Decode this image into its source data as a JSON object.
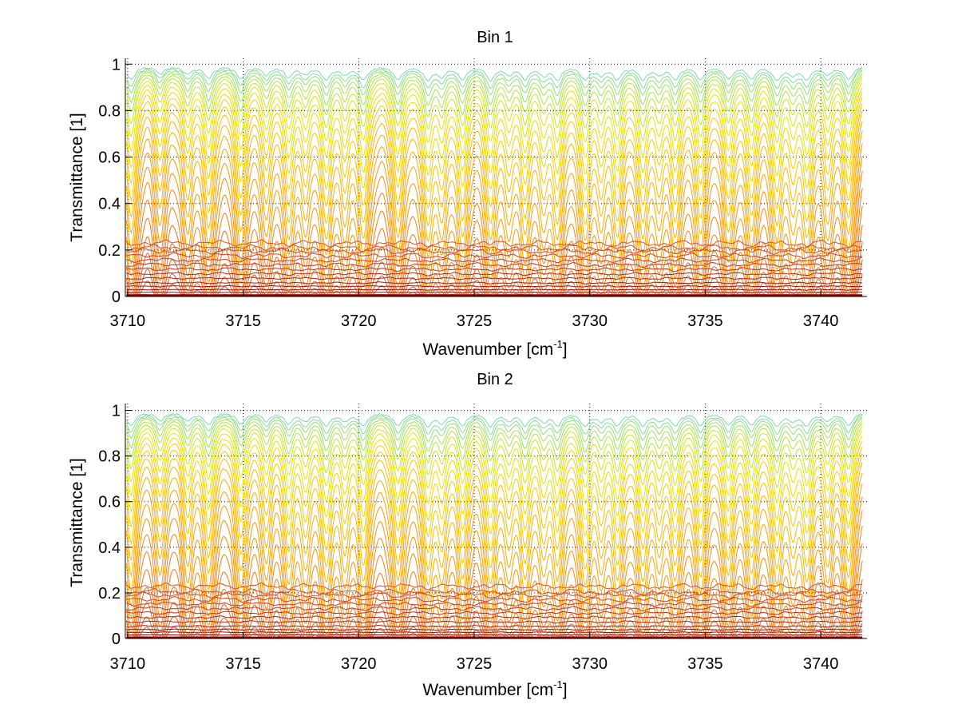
{
  "chart_data": [
    {
      "type": "line",
      "title": "Bin 1",
      "xlabel": "Wavenumber [cm",
      "xlabel_sup": "-1",
      "xlabel_end": "]",
      "ylabel": "Transmittance [1]",
      "xlim": [
        3709.9,
        3742.0
      ],
      "ylim": [
        0,
        1.025
      ],
      "xticks": [
        3710,
        3715,
        3720,
        3725,
        3730,
        3735,
        3740
      ],
      "xtick_labels": [
        "3710",
        "3715",
        "3720",
        "3725",
        "3730",
        "3735",
        "3740"
      ],
      "yticks": [
        0,
        0.2,
        0.4,
        0.6,
        0.8,
        1
      ],
      "ytick_labels": [
        "0",
        "0.2",
        "0.4",
        "0.6",
        "0.8",
        "1"
      ],
      "grid": "dotted",
      "x_range_data": [
        3709.95,
        3741.8
      ],
      "line_centers": [
        3710.15,
        3711.4,
        3712.6,
        3713.5,
        3714.9,
        3716.0,
        3716.97,
        3717.7,
        3718.6,
        3719.4,
        3720.2,
        3721.7,
        3723.0,
        3723.6,
        3724.5,
        3725.7,
        3726.5,
        3727.2,
        3728.0,
        3728.6,
        3729.8,
        3730.5,
        3731.2,
        3732.3,
        3733.0,
        3733.7,
        3734.8,
        3736.0,
        3737.0,
        3738.1,
        3738.8,
        3739.4,
        3740.3,
        3741.2
      ],
      "line_strengths": [
        1.0,
        0.55,
        0.6,
        0.9,
        0.95,
        0.6,
        0.8,
        0.55,
        1.0,
        0.6,
        1.0,
        1.0,
        1.0,
        0.7,
        0.95,
        1.0,
        0.55,
        0.9,
        0.6,
        0.95,
        1.0,
        0.6,
        0.95,
        0.95,
        0.6,
        0.95,
        0.95,
        0.9,
        0.9,
        1.0,
        0.6,
        0.95,
        0.6,
        1.0
      ],
      "optical_depths": [
        0.01,
        0.015,
        0.02,
        0.027,
        0.035,
        0.045,
        0.057,
        0.072,
        0.09,
        0.11,
        0.135,
        0.165,
        0.2,
        0.245,
        0.3,
        0.37,
        0.45,
        0.55,
        0.68,
        0.84,
        1.05,
        1.3,
        1.65,
        2.1
      ],
      "flat_levels": [
        0.235,
        0.215,
        0.2,
        0.18,
        0.16,
        0.14,
        0.12,
        0.1,
        0.08,
        0.06,
        0.045,
        0.03,
        0.018,
        0.008,
        0.003
      ],
      "colormap": [
        "#6fd6d0",
        "#9be35a",
        "#e6e600",
        "#ffc000",
        "#ff9a00",
        "#f57a10",
        "#e85a18",
        "#d84020",
        "#c02818",
        "#a01010",
        "#8b0000"
      ]
    },
    {
      "type": "line",
      "title": "Bin 2",
      "xlabel": "Wavenumber [cm",
      "xlabel_sup": "-1",
      "xlabel_end": "]",
      "ylabel": "Transmittance [1]",
      "xlim": [
        3709.9,
        3742.0
      ],
      "ylim": [
        0,
        1.03
      ],
      "xticks": [
        3710,
        3715,
        3720,
        3725,
        3730,
        3735,
        3740
      ],
      "xtick_labels": [
        "3710",
        "3715",
        "3720",
        "3725",
        "3730",
        "3735",
        "3740"
      ],
      "yticks": [
        0,
        0.2,
        0.4,
        0.6,
        0.8,
        1
      ],
      "ytick_labels": [
        "0",
        "0.2",
        "0.4",
        "0.6",
        "0.8",
        "1"
      ],
      "grid": "dotted",
      "x_range_data": [
        3709.95,
        3741.8
      ],
      "line_centers": [
        3710.15,
        3711.4,
        3712.6,
        3713.5,
        3714.9,
        3716.0,
        3716.97,
        3717.7,
        3718.6,
        3719.4,
        3720.2,
        3721.7,
        3723.0,
        3723.6,
        3724.5,
        3725.7,
        3726.5,
        3727.2,
        3728.0,
        3728.6,
        3729.8,
        3730.5,
        3731.2,
        3732.3,
        3733.0,
        3733.7,
        3734.8,
        3736.0,
        3737.0,
        3738.1,
        3738.8,
        3739.4,
        3740.3,
        3741.2
      ],
      "line_strengths": [
        1.0,
        0.6,
        0.65,
        0.9,
        0.9,
        0.6,
        0.8,
        0.6,
        1.0,
        0.6,
        1.0,
        1.0,
        1.0,
        0.7,
        0.95,
        1.0,
        0.55,
        0.9,
        0.6,
        0.95,
        1.0,
        0.6,
        0.95,
        0.95,
        0.6,
        0.95,
        0.95,
        0.9,
        0.9,
        1.0,
        0.6,
        0.95,
        0.6,
        1.0
      ],
      "optical_depths": [
        0.01,
        0.015,
        0.02,
        0.027,
        0.035,
        0.045,
        0.057,
        0.072,
        0.09,
        0.11,
        0.135,
        0.165,
        0.2,
        0.245,
        0.3,
        0.37,
        0.45,
        0.55,
        0.68,
        0.84,
        1.05,
        1.3,
        1.65,
        2.1
      ],
      "flat_levels": [
        0.235,
        0.21,
        0.195,
        0.175,
        0.155,
        0.135,
        0.115,
        0.095,
        0.075,
        0.055,
        0.04,
        0.028,
        0.016,
        0.007,
        0.003
      ],
      "colormap": [
        "#6fd6d0",
        "#9be35a",
        "#e6e600",
        "#ffc000",
        "#ff9a00",
        "#f57a10",
        "#e85a18",
        "#d84020",
        "#c02818",
        "#a01010",
        "#8b0000"
      ]
    }
  ]
}
